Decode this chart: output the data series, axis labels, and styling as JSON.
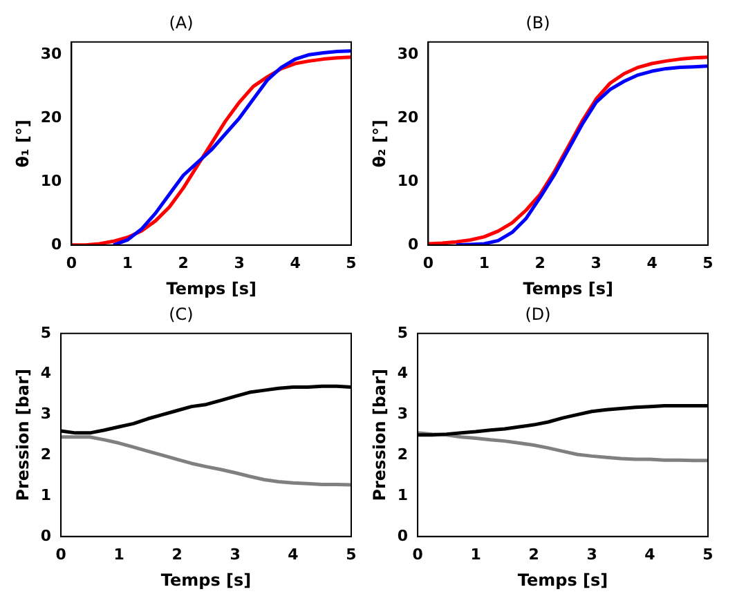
{
  "chart_data": [
    {
      "type": "line",
      "title": "(A)",
      "xlabel": "Temps [s]",
      "ylabel": "θ₁ [°]",
      "x": [
        0,
        0.25,
        0.5,
        0.75,
        1,
        1.25,
        1.5,
        1.75,
        2,
        2.25,
        2.5,
        2.75,
        3,
        3.25,
        3.5,
        3.75,
        4,
        4.25,
        4.5,
        4.75,
        5
      ],
      "xlim": [
        0,
        5
      ],
      "xticks": [
        0,
        1,
        2,
        3,
        4,
        5
      ],
      "ylim": [
        0,
        32
      ],
      "yticks": [
        0,
        10,
        20,
        30
      ],
      "grid": false,
      "series": [
        {
          "color": "#0000ff",
          "values": [
            null,
            null,
            null,
            0,
            0.8,
            2.5,
            5,
            8,
            11,
            13,
            15,
            17.5,
            20,
            23,
            26,
            28,
            29.3,
            30,
            30.3,
            30.5,
            30.6
          ]
        },
        {
          "color": "#ff0000",
          "values": [
            0,
            0,
            0.2,
            0.6,
            1.2,
            2.2,
            3.8,
            6,
            9,
            12.5,
            16,
            19.5,
            22.5,
            25,
            26.5,
            27.8,
            28.6,
            29,
            29.3,
            29.5,
            29.6
          ]
        }
      ]
    },
    {
      "type": "line",
      "title": "(B)",
      "xlabel": "Temps [s]",
      "ylabel": "θ₂ [°]",
      "x": [
        0,
        0.25,
        0.5,
        0.75,
        1,
        1.25,
        1.5,
        1.75,
        2,
        2.25,
        2.5,
        2.75,
        3,
        3.25,
        3.5,
        3.75,
        4,
        4.25,
        4.5,
        4.75,
        5
      ],
      "xlim": [
        0,
        5
      ],
      "xticks": [
        0,
        1,
        2,
        3,
        4,
        5
      ],
      "ylim": [
        0,
        32
      ],
      "yticks": [
        0,
        10,
        20,
        30
      ],
      "grid": false,
      "series": [
        {
          "color": "#0000ff",
          "values": [
            null,
            null,
            0,
            0.1,
            0.2,
            0.7,
            2,
            4.2,
            7.5,
            11,
            15,
            19,
            22.5,
            24.5,
            25.8,
            26.8,
            27.4,
            27.8,
            28,
            28.1,
            28.2
          ]
        },
        {
          "color": "#ff0000",
          "values": [
            0.2,
            0.3,
            0.5,
            0.8,
            1.3,
            2.2,
            3.5,
            5.5,
            8,
            11.5,
            15.5,
            19.5,
            23,
            25.5,
            27,
            28,
            28.6,
            29,
            29.3,
            29.5,
            29.6
          ]
        }
      ]
    },
    {
      "type": "line",
      "title": "(C)",
      "xlabel": "Temps [s]",
      "ylabel": "Pression [bar]",
      "x": [
        0,
        0.25,
        0.5,
        0.75,
        1,
        1.25,
        1.5,
        1.75,
        2,
        2.25,
        2.5,
        2.75,
        3,
        3.25,
        3.5,
        3.75,
        4,
        4.25,
        4.5,
        4.75,
        5
      ],
      "xlim": [
        0,
        5
      ],
      "xticks": [
        0,
        1,
        2,
        3,
        4,
        5
      ],
      "ylim": [
        0,
        5
      ],
      "yticks": [
        0,
        1,
        2,
        3,
        4,
        5
      ],
      "grid": false,
      "series": [
        {
          "color": "#000000",
          "values": [
            2.6,
            2.55,
            2.55,
            2.62,
            2.7,
            2.78,
            2.9,
            3.0,
            3.1,
            3.2,
            3.25,
            3.35,
            3.45,
            3.55,
            3.6,
            3.65,
            3.68,
            3.68,
            3.7,
            3.7,
            3.68
          ]
        },
        {
          "color": "#808080",
          "values": [
            2.45,
            2.45,
            2.45,
            2.38,
            2.3,
            2.2,
            2.1,
            2.0,
            1.9,
            1.8,
            1.72,
            1.65,
            1.57,
            1.48,
            1.4,
            1.35,
            1.32,
            1.3,
            1.28,
            1.28,
            1.27
          ]
        }
      ]
    },
    {
      "type": "line",
      "title": "(D)",
      "xlabel": "Temps [s]",
      "ylabel": "Pression [bar]",
      "x": [
        0,
        0.25,
        0.5,
        0.75,
        1,
        1.25,
        1.5,
        1.75,
        2,
        2.25,
        2.5,
        2.75,
        3,
        3.25,
        3.5,
        3.75,
        4,
        4.25,
        4.5,
        4.75,
        5
      ],
      "xlim": [
        0,
        5
      ],
      "xticks": [
        0,
        1,
        2,
        3,
        4,
        5
      ],
      "ylim": [
        0,
        5
      ],
      "yticks": [
        0,
        1,
        2,
        3,
        4,
        5
      ],
      "grid": false,
      "series": [
        {
          "color": "#000000",
          "values": [
            2.5,
            2.5,
            2.52,
            2.55,
            2.58,
            2.62,
            2.65,
            2.7,
            2.75,
            2.82,
            2.92,
            3.0,
            3.08,
            3.12,
            3.15,
            3.18,
            3.2,
            3.22,
            3.22,
            3.22,
            3.22
          ]
        },
        {
          "color": "#808080",
          "values": [
            2.55,
            2.52,
            2.5,
            2.45,
            2.42,
            2.38,
            2.35,
            2.3,
            2.25,
            2.18,
            2.1,
            2.02,
            1.98,
            1.95,
            1.92,
            1.9,
            1.9,
            1.88,
            1.88,
            1.87,
            1.87
          ]
        }
      ]
    }
  ]
}
